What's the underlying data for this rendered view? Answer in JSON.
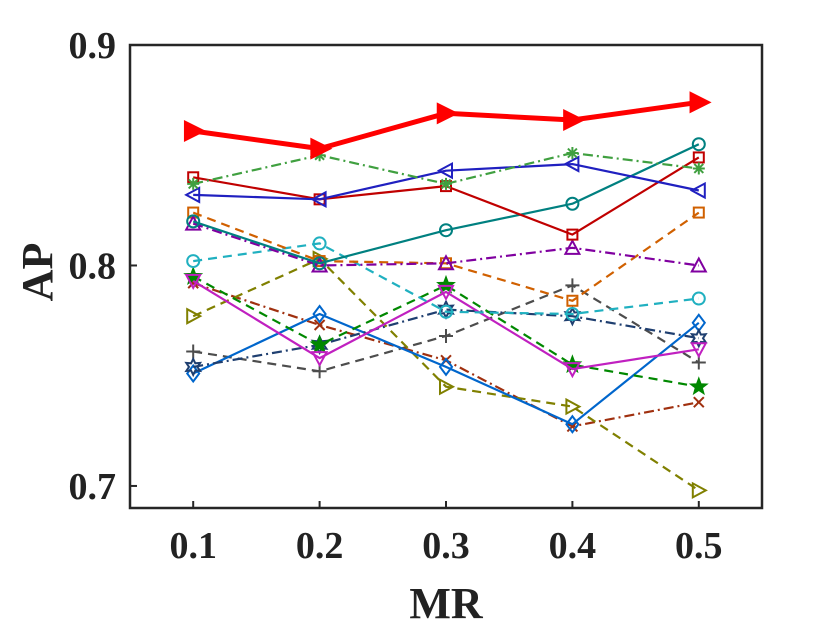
{
  "chart_data": {
    "type": "line",
    "title": "",
    "xlabel": "MR",
    "ylabel": "AP",
    "x": [
      0.1,
      0.2,
      0.3,
      0.4,
      0.5
    ],
    "xticks": [
      "0.1",
      "0.2",
      "0.3",
      "0.4",
      "0.5"
    ],
    "yticks": [
      "0.7",
      "0.8",
      "0.9"
    ],
    "xlim": [
      0.05,
      0.55
    ],
    "ylim": [
      0.69,
      0.9
    ],
    "grid": false,
    "legend": "none",
    "series": [
      {
        "name": "dark-gray-plus",
        "color": "#4d4d4d",
        "marker": "plus",
        "dash": "dashed",
        "values": [
          0.761,
          0.752,
          0.768,
          0.791,
          0.756
        ]
      },
      {
        "name": "brown-x",
        "color": "#a0300f",
        "marker": "x",
        "dash": "dashdot",
        "values": [
          0.792,
          0.773,
          0.757,
          0.727,
          0.738
        ]
      },
      {
        "name": "olive-triangle-right",
        "color": "#808000",
        "marker": "triangle-right",
        "dash": "dashed",
        "values": [
          0.777,
          0.803,
          0.745,
          0.736,
          0.698
        ]
      },
      {
        "name": "blue-diamond",
        "color": "#0066cc",
        "marker": "diamond",
        "dash": "solid",
        "values": [
          0.751,
          0.778,
          0.754,
          0.728,
          0.774
        ]
      },
      {
        "name": "navy-hexagram",
        "color": "#1f3f70",
        "marker": "hexagram",
        "dash": "dashdot",
        "values": [
          0.754,
          0.764,
          0.78,
          0.777,
          0.767
        ]
      },
      {
        "name": "green-pentagram",
        "color": "#008800",
        "marker": "pentagram",
        "dash": "dashed",
        "values": [
          0.795,
          0.764,
          0.791,
          0.755,
          0.745
        ]
      },
      {
        "name": "magenta-triangle-down",
        "color": "#c020c0",
        "marker": "triangle-down",
        "dash": "solid",
        "values": [
          0.793,
          0.758,
          0.788,
          0.753,
          0.762
        ]
      },
      {
        "name": "cyan-circle",
        "color": "#20b0c0",
        "marker": "circle",
        "dash": "dashed",
        "values": [
          0.802,
          0.81,
          0.779,
          0.778,
          0.785
        ]
      },
      {
        "name": "orange-square",
        "color": "#d06000",
        "marker": "square",
        "dash": "dashed",
        "values": [
          0.824,
          0.802,
          0.801,
          0.784,
          0.824
        ]
      },
      {
        "name": "purple-triangle-up",
        "color": "#8000a0",
        "marker": "triangle-up",
        "dash": "dashdot",
        "values": [
          0.819,
          0.8,
          0.801,
          0.808,
          0.8
        ]
      },
      {
        "name": "teal-circle",
        "color": "#008080",
        "marker": "circle",
        "dash": "solid",
        "values": [
          0.82,
          0.801,
          0.816,
          0.828,
          0.855
        ]
      },
      {
        "name": "darkred-square",
        "color": "#c00000",
        "marker": "square",
        "dash": "solid",
        "values": [
          0.84,
          0.83,
          0.836,
          0.814,
          0.849
        ]
      },
      {
        "name": "blue-triangle-left",
        "color": "#2020c0",
        "marker": "triangle-left",
        "dash": "solid",
        "values": [
          0.832,
          0.83,
          0.843,
          0.846,
          0.834
        ]
      },
      {
        "name": "green-asterisk",
        "color": "#40a040",
        "marker": "asterisk",
        "dash": "dashdot",
        "values": [
          0.837,
          0.85,
          0.837,
          0.851,
          0.844
        ]
      },
      {
        "name": "red-bold-triangle-right",
        "color": "#ff0000",
        "marker": "triangle-right",
        "dash": "solid",
        "bold": true,
        "values": [
          0.861,
          0.853,
          0.869,
          0.866,
          0.874
        ]
      }
    ]
  }
}
